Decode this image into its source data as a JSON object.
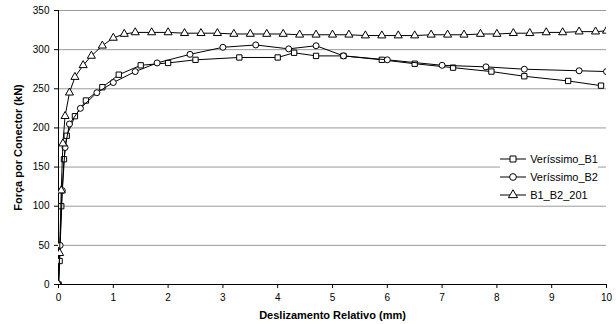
{
  "chart_data": {
    "type": "line",
    "x_label": "Deslizamento Relativo (mm)",
    "y_label": "Força por Conector (kN)",
    "xlim": [
      0,
      10
    ],
    "xticks": [
      0,
      1,
      2,
      3,
      4,
      5,
      6,
      7,
      8,
      9,
      10
    ],
    "ylim": [
      0,
      350
    ],
    "yticks": [
      0,
      50,
      100,
      150,
      200,
      250,
      300,
      350
    ],
    "grid": true,
    "legend": "right",
    "series": [
      {
        "name": "Veríssimo_B1",
        "color": "#000000",
        "marker": "square",
        "x": [
          0,
          0.02,
          0.05,
          0.1,
          0.15,
          0.3,
          0.5,
          0.8,
          1.1,
          1.5,
          2.0,
          2.5,
          3.3,
          4.0,
          4.3,
          4.7,
          5.2,
          5.9,
          6.5,
          7.2,
          7.9,
          8.5,
          9.3,
          9.9
        ],
        "values": [
          0,
          30,
          100,
          160,
          190,
          215,
          235,
          252,
          268,
          280,
          283,
          287,
          290,
          290,
          296,
          292,
          292,
          287,
          282,
          277,
          272,
          266,
          260,
          254
        ]
      },
      {
        "name": "Veríssimo_B2",
        "color": "#000000",
        "marker": "circle",
        "x": [
          0,
          0.03,
          0.07,
          0.12,
          0.2,
          0.4,
          0.7,
          1.0,
          1.4,
          1.8,
          2.4,
          3.0,
          3.6,
          4.2,
          4.7,
          5.2,
          6.0,
          7.0,
          7.8,
          8.5,
          9.5,
          10
        ],
        "values": [
          0,
          50,
          120,
          175,
          205,
          225,
          245,
          258,
          272,
          283,
          294,
          303,
          306,
          301,
          305,
          292,
          287,
          280,
          278,
          275,
          273,
          272
        ]
      },
      {
        "name": "B1_B2_201",
        "color": "#000000",
        "marker": "triangle",
        "x": [
          0,
          0.02,
          0.05,
          0.08,
          0.12,
          0.2,
          0.3,
          0.45,
          0.6,
          0.8,
          1.0,
          1.2,
          1.4,
          1.7,
          2.0,
          2.3,
          2.6,
          2.9,
          3.2,
          3.5,
          3.8,
          4.1,
          4.4,
          4.7,
          5.0,
          5.3,
          5.6,
          5.9,
          6.2,
          6.5,
          6.8,
          7.1,
          7.4,
          7.7,
          8.0,
          8.3,
          8.6,
          8.9,
          9.2,
          9.5,
          9.8,
          10
        ],
        "values": [
          0,
          40,
          120,
          180,
          215,
          245,
          265,
          280,
          292,
          305,
          315,
          320,
          322,
          322,
          322,
          321,
          321,
          321,
          320,
          320,
          320,
          320,
          319,
          319,
          319,
          319,
          318,
          318,
          318,
          318,
          319,
          319,
          319,
          320,
          320,
          321,
          321,
          322,
          322,
          323,
          323,
          324
        ]
      }
    ]
  }
}
